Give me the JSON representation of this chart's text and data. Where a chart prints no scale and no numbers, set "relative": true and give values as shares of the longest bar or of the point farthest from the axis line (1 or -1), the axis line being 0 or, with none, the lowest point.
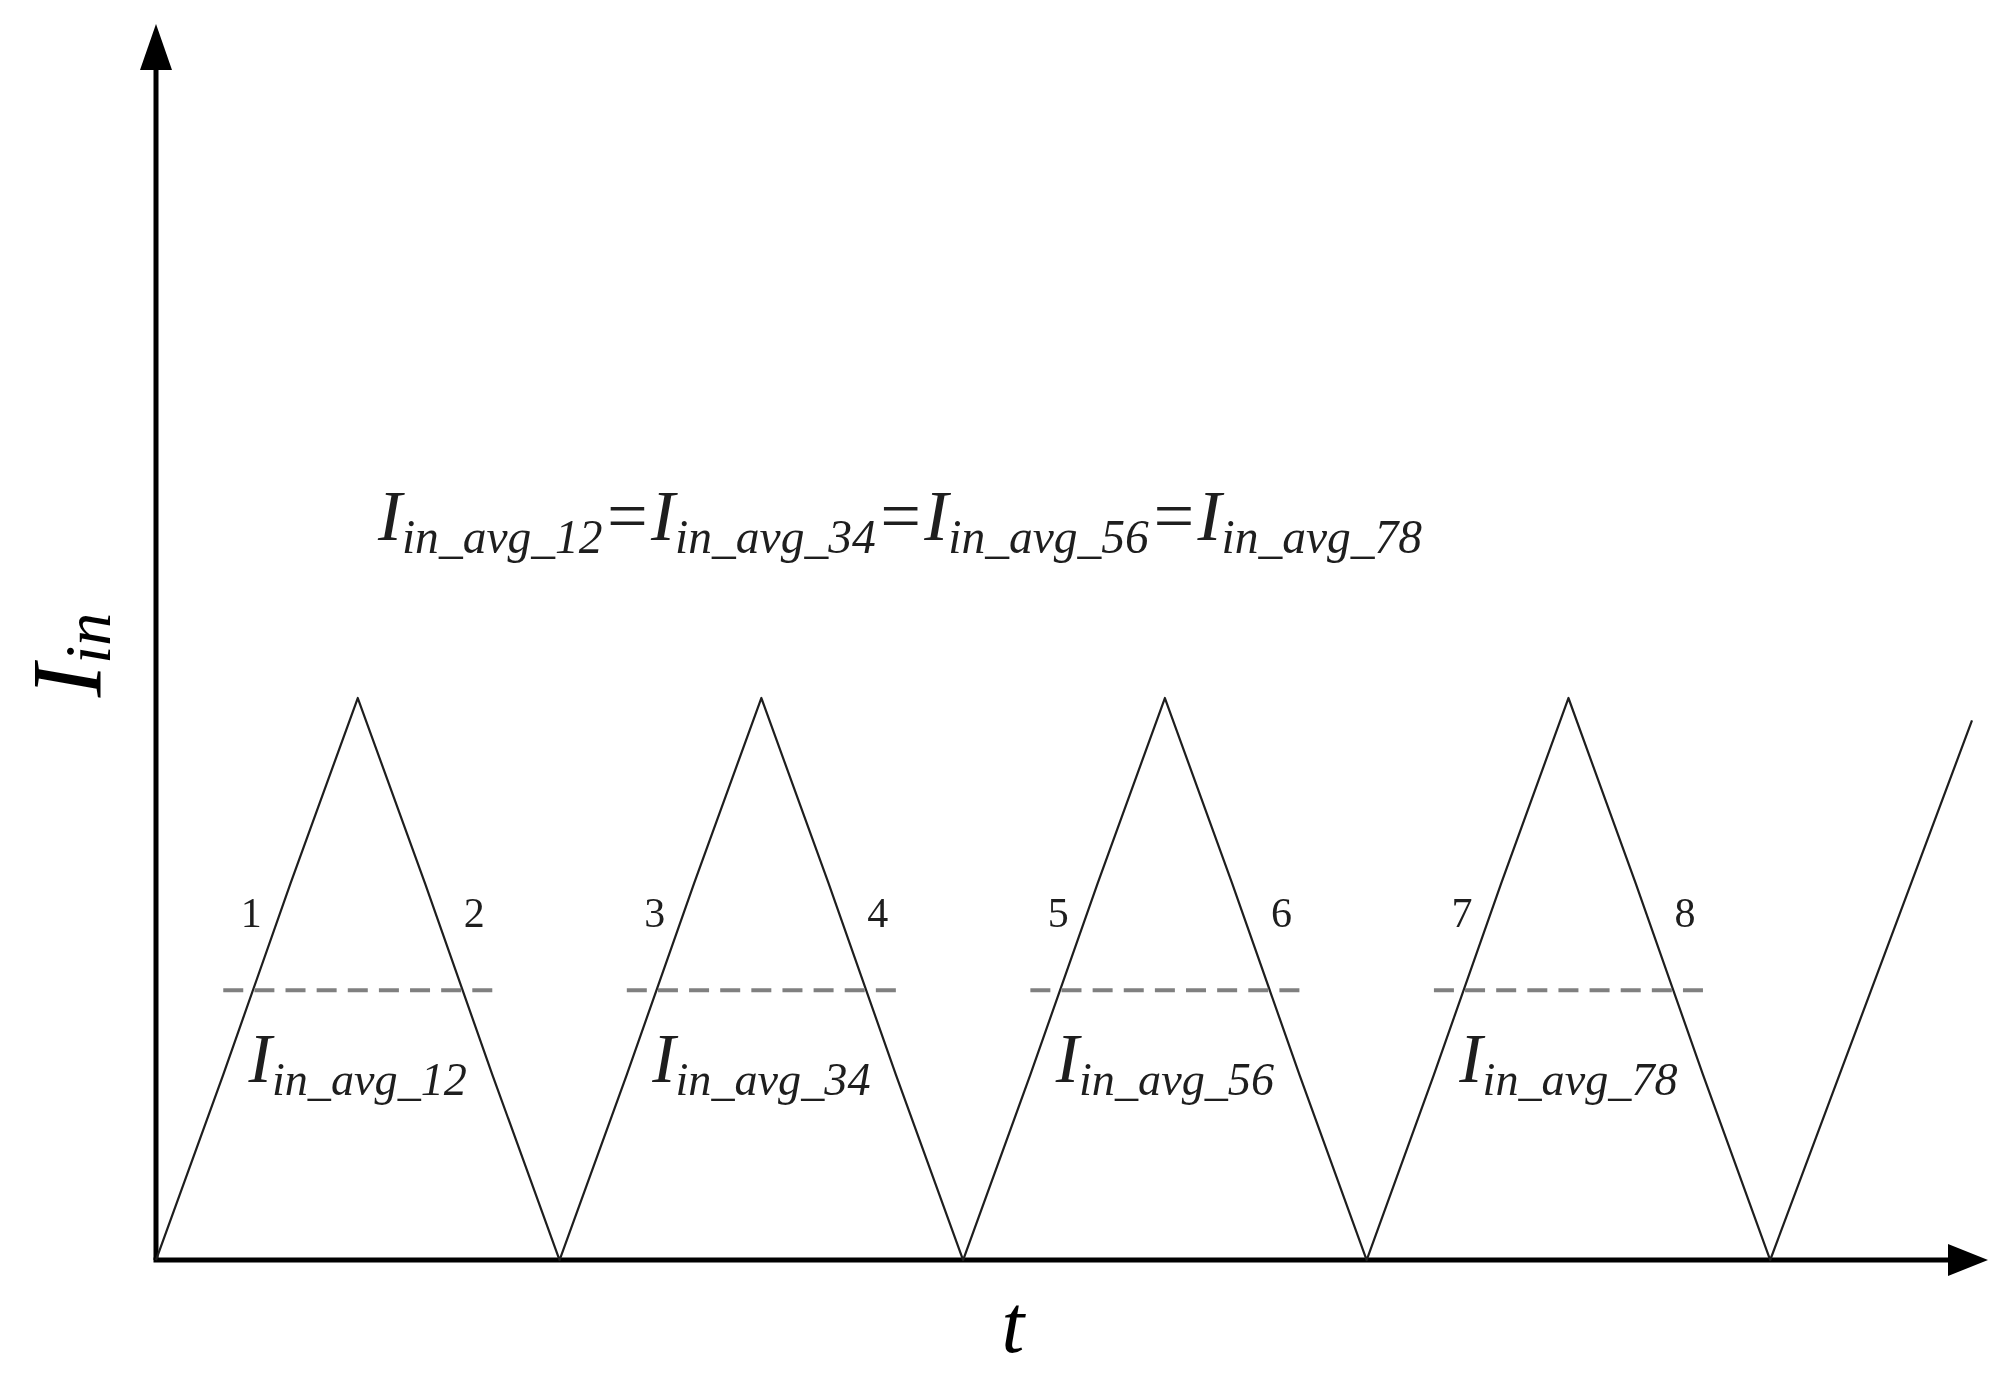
{
  "chart_data": {
    "type": "line",
    "relative": true,
    "xlabel": "t",
    "ylabel": "I$_{in}$",
    "categories": [
      null,
      null,
      null,
      null,
      null,
      null,
      null,
      null,
      null,
      null,
      null,
      null,
      null,
      null,
      null,
      null,
      null,
      null,
      null,
      null,
      null,
      null,
      null,
      null,
      null,
      null,
      null,
      null
    ],
    "series": [
      {
        "color": "#1e1e1e",
        "values": [
          0,
          0.33,
          0.67,
          1,
          0.67,
          0.33,
          0,
          0.33,
          0.67,
          1,
          0.67,
          0.33,
          0,
          0.33,
          0.67,
          1,
          0.67,
          0.33,
          0,
          0.33,
          0.67,
          1,
          0.67,
          0.33,
          0,
          0.32,
          0.64,
          0.96
        ]
      },
      {
        "name": "I$_{in_avg_12}$",
        "color": "#808080",
        "line_style": "dashed",
        "values": [
          null,
          0.48,
          0.48,
          0.48,
          0.48,
          0.48,
          null,
          null,
          null,
          null,
          null,
          null,
          null,
          null,
          null,
          null,
          null,
          null,
          null,
          null,
          null,
          null,
          null,
          null,
          null,
          null,
          null,
          null
        ]
      },
      {
        "name": "I$_{in_avg_34}$",
        "color": "#808080",
        "line_style": "dashed",
        "values": [
          null,
          null,
          null,
          null,
          null,
          null,
          null,
          0.48,
          0.48,
          0.48,
          0.48,
          0.48,
          null,
          null,
          null,
          null,
          null,
          null,
          null,
          null,
          null,
          null,
          null,
          null,
          null,
          null,
          null,
          null
        ]
      },
      {
        "name": "I$_{in_avg_56}$",
        "color": "#808080",
        "line_style": "dashed",
        "values": [
          null,
          null,
          null,
          null,
          null,
          null,
          null,
          null,
          null,
          null,
          null,
          null,
          null,
          0.48,
          0.48,
          0.48,
          0.48,
          0.48,
          null,
          null,
          null,
          null,
          null,
          null,
          null,
          null,
          null,
          null
        ]
      },
      {
        "name": "I$_{in_avg_78}$",
        "color": "#808080",
        "line_style": "dashed",
        "values": [
          null,
          null,
          null,
          null,
          null,
          null,
          null,
          null,
          null,
          null,
          null,
          null,
          null,
          null,
          null,
          null,
          null,
          null,
          null,
          0.48,
          0.48,
          0.48,
          0.48,
          0.48,
          null,
          null,
          null,
          null
        ]
      }
    ],
    "annotations": [
      "I$_{in_avg_12}$=I$_{in_avg_34}$=I$_{in_avg_56}$=I$_{in_avg_78}$",
      "1",
      "2",
      "3",
      "4",
      "5",
      "6",
      "7",
      "8"
    ]
  }
}
